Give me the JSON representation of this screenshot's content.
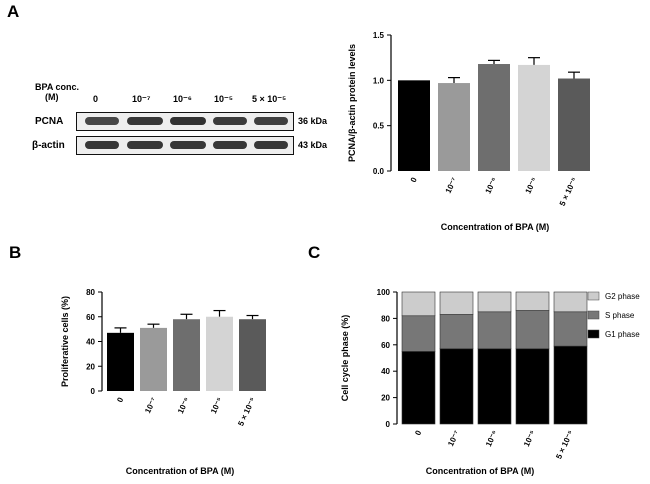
{
  "panels": {
    "a": "A",
    "b": "B",
    "c": "C"
  },
  "blot": {
    "conc_label_line1": "BPA conc.",
    "conc_label_line2": "(M)",
    "lanes": [
      "0",
      "10⁻⁷",
      "10⁻⁶",
      "10⁻⁵",
      "5 × 10⁻⁵"
    ],
    "rows": [
      {
        "name": "PCNA",
        "size": "36 kDa",
        "intensity": [
          0.82,
          0.9,
          0.92,
          0.88,
          0.86
        ]
      },
      {
        "name": "β-actin",
        "size": "43 kDa",
        "intensity": [
          0.9,
          0.9,
          0.9,
          0.9,
          0.9
        ]
      }
    ]
  },
  "colors": {
    "bar_shades": [
      "#000000",
      "#9a9a9a",
      "#6e6e6e",
      "#d4d4d4",
      "#5a5a5a"
    ],
    "g1": "#000000",
    "s": "#777777",
    "g2": "#cccccc"
  },
  "chart_data": [
    {
      "id": "A",
      "type": "bar",
      "categories": [
        "0",
        "10⁻⁷",
        "10⁻⁶",
        "10⁻⁵",
        "5 × 10⁻⁵"
      ],
      "values": [
        1.0,
        0.97,
        1.18,
        1.17,
        1.02
      ],
      "errors": [
        0.0,
        0.06,
        0.04,
        0.08,
        0.07
      ],
      "xlabel": "Concentration of BPA (M)",
      "ylabel": "PCNA/β-actin protein levels",
      "ylim": [
        0,
        1.5
      ],
      "yticks": [
        "0.0",
        "0.5",
        "1.0",
        "1.5"
      ]
    },
    {
      "id": "B",
      "type": "bar",
      "categories": [
        "0",
        "10⁻⁷",
        "10⁻⁶",
        "10⁻⁵",
        "5 × 10⁻⁵"
      ],
      "values": [
        47,
        51,
        58,
        60,
        58
      ],
      "errors": [
        4,
        3,
        4,
        5,
        3
      ],
      "xlabel": "Concentration of BPA (M)",
      "ylabel": "Proliferative cells (%)",
      "ylim": [
        0,
        80
      ],
      "yticks": [
        "0",
        "20",
        "40",
        "60",
        "80"
      ]
    },
    {
      "id": "C",
      "type": "bar",
      "stacked": true,
      "categories": [
        "0",
        "10⁻⁷",
        "10⁻⁶",
        "10⁻⁵",
        "5 × 10⁻⁵"
      ],
      "series": [
        {
          "name": "G1 phase",
          "values": [
            55,
            57,
            57,
            57,
            59
          ]
        },
        {
          "name": "S phase",
          "values": [
            27,
            26,
            28,
            29,
            26
          ]
        },
        {
          "name": "G2 phase",
          "values": [
            18,
            17,
            15,
            14,
            15
          ]
        }
      ],
      "legend_order": [
        "G2 phase",
        "S phase",
        "G1 phase"
      ],
      "xlabel": "Concentration of BPA (M)",
      "ylabel": "Cell cycle phase (%)",
      "ylim": [
        0,
        100
      ],
      "yticks": [
        "0",
        "20",
        "40",
        "60",
        "80",
        "100"
      ],
      "legend_position": "top-right"
    }
  ]
}
